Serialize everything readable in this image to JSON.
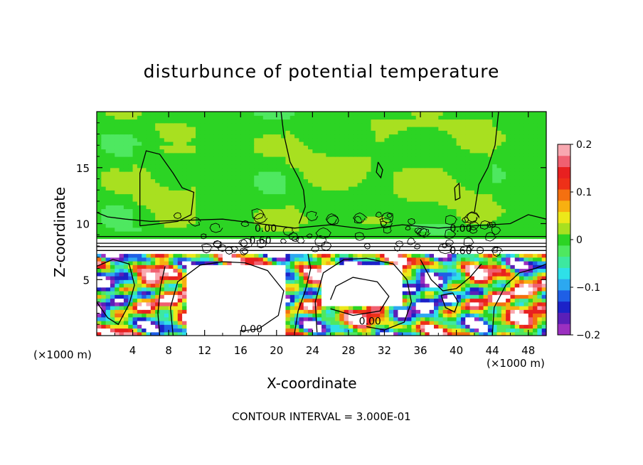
{
  "chart_data": {
    "type": "heatmap",
    "title": "disturbunce of potential temperature",
    "xlabel": "X-coordinate",
    "ylabel": "Z-coordinate",
    "x_unit_label": "(×1000 m)",
    "x_unit_label_right": "(×1000 m)",
    "xlim": [
      0,
      50
    ],
    "ylim": [
      0,
      20
    ],
    "x_ticks": [
      4,
      8,
      12,
      16,
      20,
      24,
      28,
      32,
      36,
      40,
      44,
      48
    ],
    "x_tick_labels": [
      "4",
      "8",
      "12",
      "16",
      "20",
      "24",
      "28",
      "32",
      "36",
      "40",
      "44",
      "48"
    ],
    "y_ticks": [
      5,
      10,
      15
    ],
    "y_tick_labels": [
      "5",
      "10",
      "15"
    ],
    "colorbar": {
      "range": [
        -0.2,
        0.2
      ],
      "ticks": [
        0.2,
        0.1,
        0,
        -0.1,
        -0.2
      ],
      "tick_labels": [
        "0.2",
        "0.1",
        "0",
        "−0.1",
        "−0.2"
      ],
      "colors": [
        "#9b30c0",
        "#5a1fb8",
        "#1c22c8",
        "#1f5fe6",
        "#2ca8f0",
        "#2ee0e8",
        "#3de8a0",
        "#4ee860",
        "#2cd424",
        "#a8e020",
        "#ece81a",
        "#f8b010",
        "#f47010",
        "#ee3018",
        "#e82020",
        "#f06070",
        "#f8a8b0"
      ]
    },
    "contour_labels": [
      {
        "text": "0.00",
        "x": 18.8,
        "y": 9.6
      },
      {
        "text": "0.00",
        "x": 40.5,
        "y": 9.6
      },
      {
        "text": "0.60",
        "x": 18.2,
        "y": 8.5
      },
      {
        "text": "0.60",
        "x": 40.5,
        "y": 7.6
      },
      {
        "text": "0.00",
        "x": 17.2,
        "y": 0.6
      },
      {
        "text": "0.00",
        "x": 30.4,
        "y": 1.3
      }
    ],
    "contour_interval_text": "CONTOUR INTERVAL = 3.000E-01",
    "fields": {
      "upper_layer": {
        "z_range": [
          8.8,
          20
        ],
        "value_range": [
          -0.02,
          0.03
        ]
      },
      "inversion_band": {
        "z_range": [
          7.5,
          8.8
        ],
        "value_range": [
          0.6,
          1.2
        ]
      },
      "lower_layer": {
        "z_range": [
          0,
          7.5
        ],
        "value_range": [
          -0.2,
          0.2
        ]
      }
    }
  },
  "colors": {
    "upper_green": "#4ee860",
    "band_white": "#ffffff",
    "warm": "#e82020",
    "cool": "#1c22c8",
    "contour": "#000000"
  }
}
